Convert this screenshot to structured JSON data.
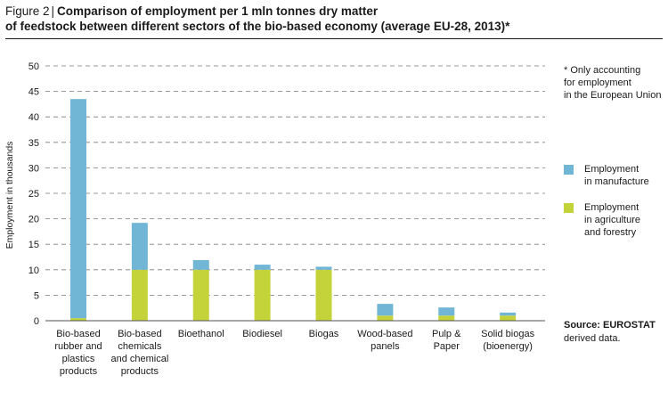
{
  "figure": {
    "label": "Figure 2",
    "separator": "|",
    "title_line1": "Comparison of employment per 1 mln tonnes dry matter",
    "title_line2": "of feedstock between different sectors of the bio-based economy (average EU-28, 2013)*"
  },
  "note": {
    "lines": [
      "* Only accounting",
      "for employment",
      "in the European Union"
    ]
  },
  "source": {
    "label": "Source:",
    "text1": "EUROSTAT",
    "text2": "derived data."
  },
  "colors": {
    "manufacture": "#72b6d6",
    "agriculture": "#c4d33a",
    "grid": "#7a7a7a",
    "axis": "#555555"
  },
  "chart_data": {
    "type": "bar",
    "stacked": true,
    "ylabel": "Employment in thousands",
    "ylim": [
      0,
      50
    ],
    "yticks": [
      0,
      5,
      10,
      15,
      20,
      25,
      30,
      35,
      40,
      45,
      50
    ],
    "grid": true,
    "categories": [
      [
        "Bio-based",
        "rubber and",
        "plastics",
        "products"
      ],
      [
        "Bio-based",
        "chemicals",
        "and chemical",
        "products"
      ],
      [
        "Bioethanol"
      ],
      [
        "Biodiesel"
      ],
      [
        "Biogas"
      ],
      [
        "Wood-based",
        "panels"
      ],
      [
        "Pulp &",
        "Paper"
      ],
      [
        "Solid biogas",
        "(bioenergy)"
      ]
    ],
    "series": [
      {
        "name": "Employment in agriculture and forestry",
        "legend_lines": [
          "Employment",
          "in agriculture",
          "and forestry"
        ],
        "color": "#c4d33a",
        "values": [
          0.5,
          10.0,
          10.0,
          10.0,
          10.0,
          1.0,
          1.0,
          1.0
        ]
      },
      {
        "name": "Employment in manufacture",
        "legend_lines": [
          "Employment",
          "in manufacture"
        ],
        "color": "#72b6d6",
        "values": [
          43.0,
          9.2,
          1.9,
          1.0,
          0.6,
          2.3,
          1.6,
          0.6
        ]
      }
    ],
    "legend_position": "right"
  }
}
